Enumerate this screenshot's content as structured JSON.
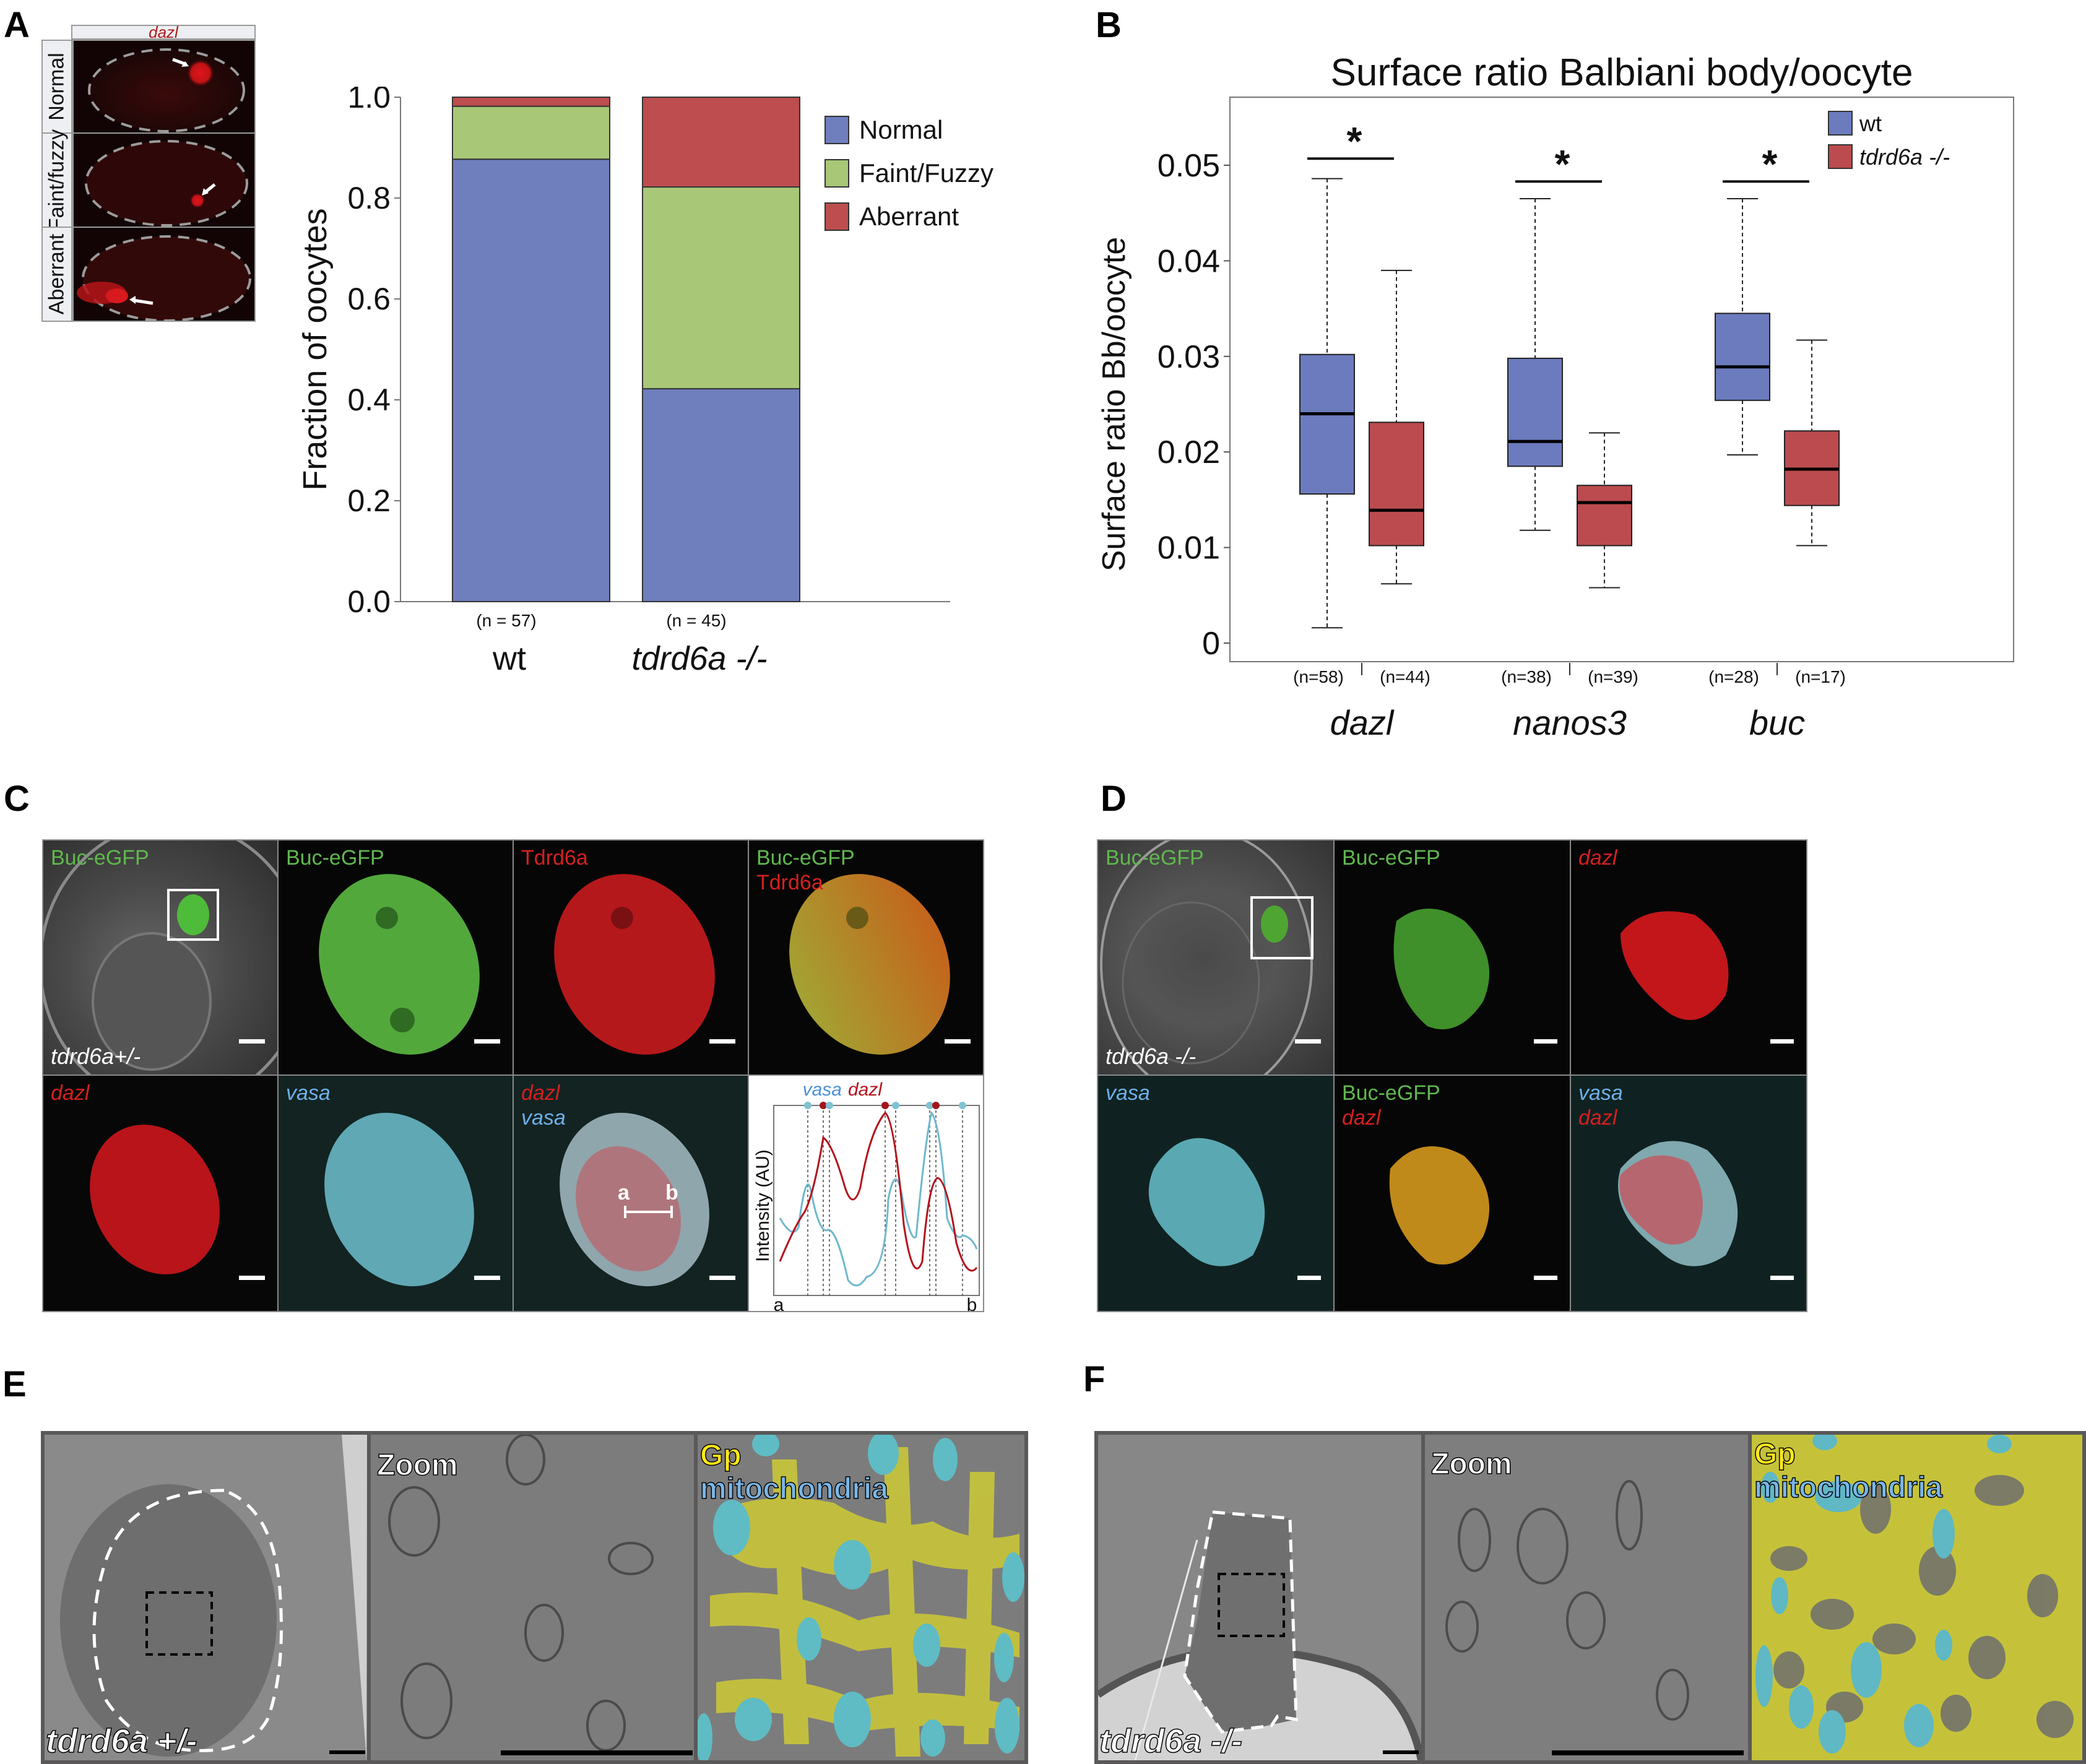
{
  "panels": {
    "A": {
      "letter": "A",
      "header": "dazl",
      "row_labels": [
        "Normal",
        "Faint/fuzzy",
        "Aberrant"
      ]
    },
    "B": {
      "letter": "B"
    },
    "C": {
      "letter": "C",
      "top_row": [
        {
          "lines": [
            {
              "text": "Buc-eGFP",
              "color": "green"
            }
          ],
          "genotype": "tdrd6a+/-"
        },
        {
          "lines": [
            {
              "text": "Buc-eGFP",
              "color": "green"
            }
          ]
        },
        {
          "lines": [
            {
              "text": "Tdrd6a",
              "color": "red"
            }
          ]
        },
        {
          "lines": [
            {
              "text": "Buc-eGFP",
              "color": "green"
            },
            {
              "text": "Tdrd6a",
              "color": "red"
            }
          ]
        }
      ],
      "bottom_row": [
        {
          "lines": [
            {
              "text": "dazl",
              "color": "red"
            }
          ]
        },
        {
          "lines": [
            {
              "text": "vasa",
              "color": "cyan"
            }
          ]
        },
        {
          "lines": [
            {
              "text": "dazl",
              "color": "red"
            },
            {
              "text": "vasa",
              "color": "cyan"
            }
          ],
          "line_scan": {
            "start": "a",
            "end": "b"
          }
        }
      ],
      "profile": {
        "legend": [
          {
            "text": "vasa",
            "color": "#4a90d9"
          },
          {
            "text": "dazl",
            "color": "#b3121b"
          }
        ],
        "ylabel": "Intensity (AU)",
        "x_start": "a",
        "x_end": "b"
      }
    },
    "D": {
      "letter": "D",
      "top_row": [
        {
          "lines": [
            {
              "text": "Buc-eGFP",
              "color": "green"
            }
          ],
          "genotype": "tdrd6a -/-"
        },
        {
          "lines": [
            {
              "text": "Buc-eGFP",
              "color": "green"
            }
          ]
        },
        {
          "lines": [
            {
              "text": "dazl",
              "color": "red"
            }
          ]
        }
      ],
      "bottom_row": [
        {
          "lines": [
            {
              "text": "vasa",
              "color": "cyan"
            }
          ]
        },
        {
          "lines": [
            {
              "text": "Buc-eGFP",
              "color": "green"
            },
            {
              "text": "dazl",
              "color": "red"
            }
          ]
        },
        {
          "lines": [
            {
              "text": "vasa",
              "color": "cyan"
            },
            {
              "text": "dazl",
              "color": "red"
            }
          ]
        }
      ]
    },
    "E": {
      "letter": "E",
      "genotype": "tdrd6a +/-",
      "zoom_label": "Zoom",
      "overlay_labels": [
        "Gp",
        "mitochondria"
      ]
    },
    "F": {
      "letter": "F",
      "genotype": "tdrd6a -/-",
      "zoom_label": "Zoom",
      "overlay_labels": [
        "Gp",
        "mitochondria"
      ]
    }
  },
  "chart_data": [
    {
      "type": "bar",
      "stacked": true,
      "panel": "A",
      "title": "",
      "xlabel": "",
      "ylabel": "Fraction of oocytes",
      "ylim": [
        0,
        1.0
      ],
      "yticks": [
        "0.0",
        "0.2",
        "0.4",
        "0.6",
        "0.8",
        "1.0"
      ],
      "categories": [
        "wt",
        "tdrd6a -/-"
      ],
      "category_italic": [
        false,
        true
      ],
      "n_labels": [
        "(n = 57)",
        "(n = 45)"
      ],
      "series": [
        {
          "name": "Normal",
          "color": "#6f7fbe",
          "values": [
            0.877,
            0.422
          ]
        },
        {
          "name": "Faint/Fuzzy",
          "color": "#a8c777",
          "values": [
            0.105,
            0.4
          ]
        },
        {
          "name": "Aberrant",
          "color": "#bd4d4f",
          "values": [
            0.018,
            0.178
          ]
        }
      ],
      "legend_position": "right"
    },
    {
      "type": "box",
      "panel": "B",
      "title": "Surface ratio Balbiani body/oocyte",
      "xlabel": "",
      "ylabel": "Surface ratio Bb/oocyte",
      "ylim": [
        0,
        0.055
      ],
      "yticks": [
        "0",
        "0.01",
        "0.02",
        "0.03",
        "0.04",
        "0.05"
      ],
      "categories": [
        "dazl",
        "nanos3",
        "buc"
      ],
      "legend_position": "top-right",
      "series": [
        {
          "name": "wt",
          "color": "#6b7bbd",
          "n_labels": [
            "(n=58)",
            "(n=38)",
            "(n=28)"
          ],
          "boxes": [
            {
              "min": 0.0016,
              "q1": 0.0156,
              "median": 0.024,
              "q3": 0.0302,
              "max": 0.0486
            },
            {
              "min": 0.0118,
              "q1": 0.0185,
              "median": 0.0211,
              "q3": 0.0298,
              "max": 0.0465
            },
            {
              "min": 0.0197,
              "q1": 0.0254,
              "median": 0.0289,
              "q3": 0.0345,
              "max": 0.0465
            }
          ]
        },
        {
          "name": "tdrd6a -/-",
          "color": "#bb4b4e",
          "n_labels": [
            "(n=44)",
            "(n=39)",
            "(n=17)"
          ],
          "boxes": [
            {
              "min": 0.0062,
              "q1": 0.0102,
              "median": 0.0139,
              "q3": 0.0231,
              "max": 0.039
            },
            {
              "min": 0.0058,
              "q1": 0.0102,
              "median": 0.0147,
              "q3": 0.0165,
              "max": 0.022
            },
            {
              "min": 0.0102,
              "q1": 0.0144,
              "median": 0.0182,
              "q3": 0.0222,
              "max": 0.0317
            }
          ]
        }
      ],
      "significance": [
        {
          "category": "dazl",
          "label": "*",
          "y": 0.0507
        },
        {
          "category": "nanos3",
          "label": "*",
          "y": 0.0483
        },
        {
          "category": "buc",
          "label": "*",
          "y": 0.0483
        }
      ]
    }
  ]
}
